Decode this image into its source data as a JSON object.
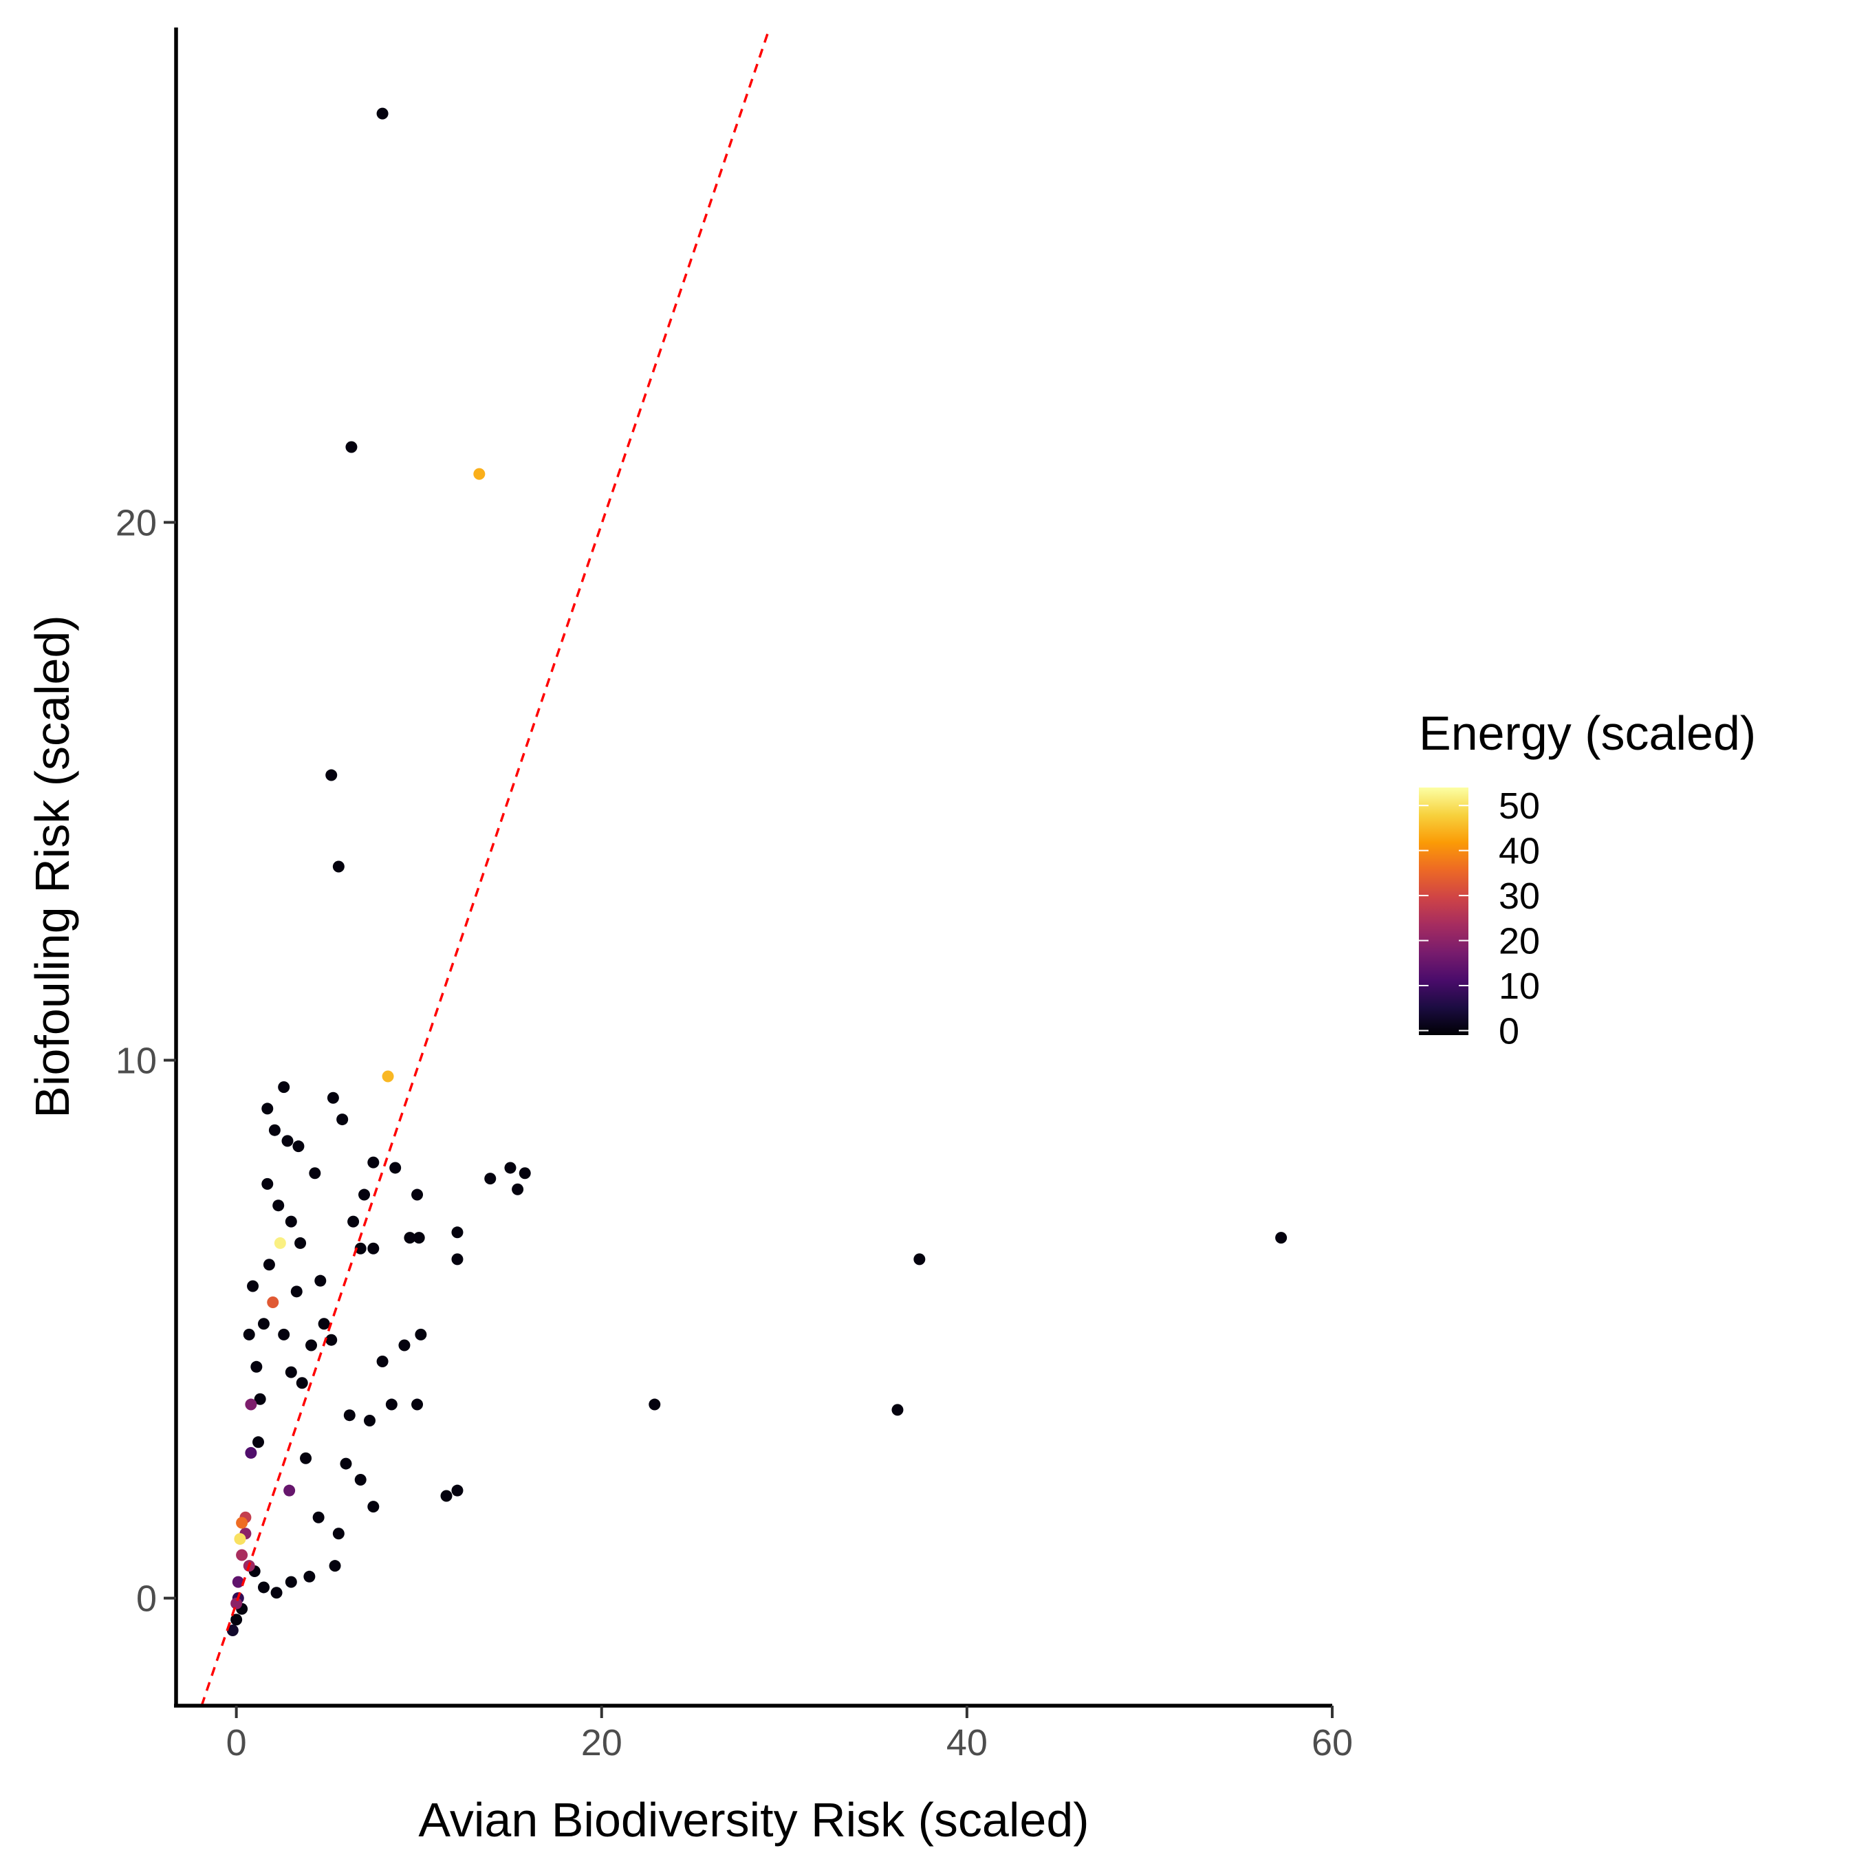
{
  "chart_data": {
    "type": "scatter",
    "xlabel": "Avian Biodiversity Risk (scaled)",
    "ylabel": "Biofouling Risk (scaled)",
    "xlim": [
      -3.3,
      60
    ],
    "ylim": [
      -2,
      29.2
    ],
    "x_ticks": [
      0,
      20,
      40,
      60
    ],
    "y_ticks": [
      0,
      10,
      20
    ],
    "x_tick_labels": [
      "0",
      "20",
      "40",
      "60"
    ],
    "y_tick_labels": [
      "0",
      "10",
      "20"
    ],
    "grid": false,
    "reference_line": {
      "style": "dashed",
      "color": "#ff0000",
      "points": [
        [
          -1.9,
          -2
        ],
        [
          29.2,
          29.2
        ]
      ]
    },
    "legend": {
      "title": "Energy (scaled)",
      "placement": "right",
      "range": [
        -1,
        54
      ],
      "breaks": [
        0,
        10,
        20,
        30,
        40,
        50
      ],
      "break_labels": [
        "0",
        "10",
        "20",
        "30",
        "40",
        "50"
      ],
      "palette": [
        "#000004",
        "#1b0c41",
        "#4a0c6b",
        "#781c6d",
        "#a52c60",
        "#cf4446",
        "#ed6925",
        "#fb9b06",
        "#f7d13d",
        "#fcffa4"
      ]
    },
    "points": [
      [
        8,
        27.6,
        0
      ],
      [
        6.3,
        21.4,
        0
      ],
      [
        13.3,
        20.9,
        44
      ],
      [
        5.2,
        15.3,
        0
      ],
      [
        5.6,
        13.6,
        0
      ],
      [
        8.3,
        9.7,
        45
      ],
      [
        2.6,
        9.5,
        0
      ],
      [
        5.3,
        9.3,
        0
      ],
      [
        1.7,
        9.1,
        0
      ],
      [
        5.8,
        8.9,
        0
      ],
      [
        2.1,
        8.7,
        0
      ],
      [
        3.4,
        8.4,
        0
      ],
      [
        2.8,
        8.5,
        0
      ],
      [
        7.5,
        8.1,
        0
      ],
      [
        8.7,
        8.0,
        0
      ],
      [
        15.0,
        8.0,
        0
      ],
      [
        15.8,
        7.9,
        0
      ],
      [
        13.9,
        7.8,
        0
      ],
      [
        15.4,
        7.6,
        0
      ],
      [
        4.3,
        7.9,
        0
      ],
      [
        9.9,
        7.5,
        0
      ],
      [
        7.0,
        7.5,
        0
      ],
      [
        2.3,
        7.3,
        0
      ],
      [
        6.4,
        7.0,
        0
      ],
      [
        3.5,
        6.6,
        0
      ],
      [
        2.4,
        6.6,
        52
      ],
      [
        9.5,
        6.7,
        0
      ],
      [
        10.0,
        6.7,
        0
      ],
      [
        12.1,
        6.8,
        0
      ],
      [
        12.1,
        6.3,
        0
      ],
      [
        37.4,
        6.3,
        0
      ],
      [
        57.2,
        6.7,
        0
      ],
      [
        7.5,
        6.5,
        0
      ],
      [
        6.8,
        6.5,
        0
      ],
      [
        2.0,
        5.5,
        33
      ],
      [
        4.8,
        5.1,
        0
      ],
      [
        10.1,
        4.9,
        0
      ],
      [
        9.2,
        4.7,
        0
      ],
      [
        8.0,
        4.4,
        0
      ],
      [
        3.6,
        4.0,
        0
      ],
      [
        1.3,
        3.7,
        0
      ],
      [
        9.9,
        3.6,
        0
      ],
      [
        8.5,
        3.6,
        0
      ],
      [
        22.9,
        3.6,
        0
      ],
      [
        36.2,
        3.5,
        0
      ],
      [
        0.8,
        3.6,
        18
      ],
      [
        0.8,
        2.7,
        12
      ],
      [
        1.2,
        2.9,
        0
      ],
      [
        2.9,
        2.0,
        15
      ],
      [
        12.1,
        2.0,
        0
      ],
      [
        11.5,
        1.9,
        0
      ],
      [
        7.5,
        1.7,
        0
      ],
      [
        0.5,
        1.5,
        28
      ],
      [
        0.3,
        1.4,
        36
      ],
      [
        0.5,
        1.2,
        20
      ],
      [
        0.2,
        1.1,
        50
      ],
      [
        0.3,
        0.8,
        24
      ],
      [
        0.7,
        0.6,
        22
      ],
      [
        0.1,
        0.3,
        14
      ],
      [
        0.0,
        -0.1,
        20
      ],
      [
        0.1,
        0.0,
        8
      ],
      [
        5.4,
        0.6,
        0
      ],
      [
        3.0,
        0.3,
        0
      ],
      [
        2.2,
        0.1,
        0
      ],
      [
        4.0,
        0.4,
        0
      ],
      [
        1.5,
        0.2,
        0
      ],
      [
        0.3,
        -0.2,
        0
      ],
      [
        0.0,
        -0.4,
        0
      ],
      [
        -0.2,
        -0.6,
        3
      ],
      [
        1.0,
        0.5,
        0
      ],
      [
        6.0,
        2.5,
        0
      ],
      [
        6.2,
        3.4,
        0
      ],
      [
        7.3,
        3.3,
        0
      ],
      [
        6.8,
        2.2,
        0
      ],
      [
        5.6,
        1.2,
        0
      ],
      [
        4.5,
        1.5,
        0
      ],
      [
        3.8,
        2.6,
        0
      ],
      [
        4.1,
        4.7,
        0
      ],
      [
        3.0,
        4.2,
        0
      ],
      [
        3.3,
        5.7,
        0
      ],
      [
        4.6,
        5.9,
        0
      ],
      [
        1.8,
        6.2,
        0
      ],
      [
        1.5,
        5.1,
        0
      ],
      [
        2.6,
        4.9,
        0
      ],
      [
        5.2,
        4.8,
        0
      ],
      [
        1.1,
        4.3,
        0
      ],
      [
        0.7,
        4.9,
        0
      ],
      [
        0.9,
        5.8,
        0
      ],
      [
        1.7,
        7.7,
        0
      ],
      [
        3.0,
        7.0,
        0
      ]
    ]
  }
}
